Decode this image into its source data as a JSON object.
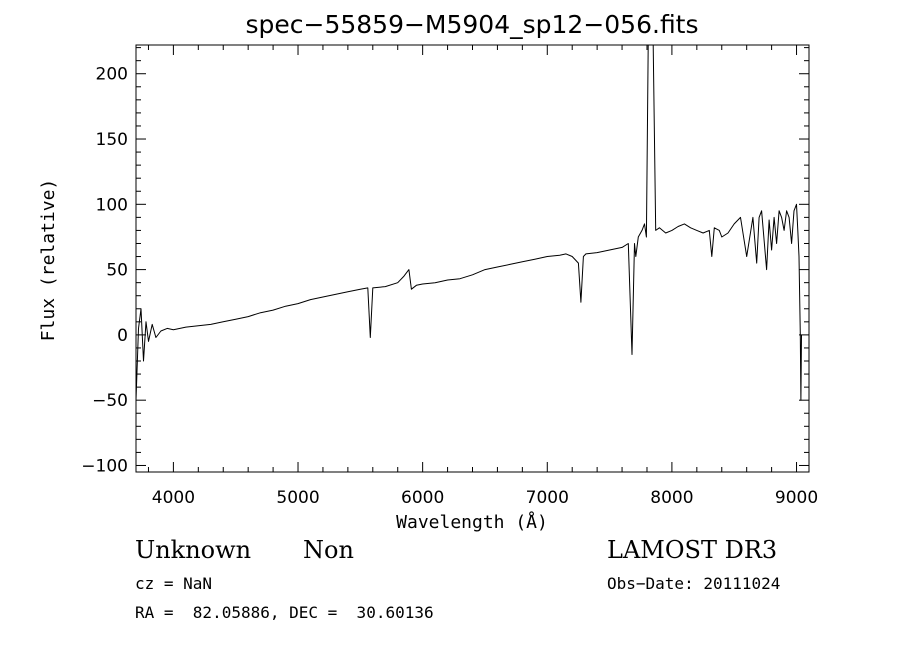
{
  "chart_data": {
    "type": "line",
    "title": "spec−55859−M5904_sp12−056.fits",
    "xlabel": "Wavelength (Å)",
    "ylabel": "Flux (relative)",
    "xlim": [
      3700,
      9100
    ],
    "ylim": [
      -105,
      222
    ],
    "xticks": [
      4000,
      5000,
      6000,
      7000,
      8000,
      9000
    ],
    "xtick_labels": [
      "4000",
      "5000",
      "6000",
      "7000",
      "8000",
      "9000"
    ],
    "yticks": [
      -100,
      -50,
      0,
      50,
      100,
      150,
      200
    ],
    "ytick_labels": [
      "−100",
      "−50",
      "0",
      "50",
      "100",
      "150",
      "200"
    ],
    "grid": false,
    "series": [
      {
        "color": "#000000",
        "x": [
          3700,
          3720,
          3740,
          3760,
          3780,
          3800,
          3830,
          3860,
          3900,
          3950,
          4000,
          4100,
          4200,
          4300,
          4400,
          4500,
          4600,
          4700,
          4800,
          4900,
          5000,
          5100,
          5200,
          5300,
          5400,
          5500,
          5560,
          5580,
          5600,
          5700,
          5800,
          5850,
          5890,
          5910,
          5950,
          6000,
          6100,
          6200,
          6300,
          6400,
          6500,
          6600,
          6700,
          6800,
          6900,
          7000,
          7100,
          7150,
          7200,
          7250,
          7270,
          7290,
          7310,
          7400,
          7500,
          7600,
          7650,
          7680,
          7700,
          7710,
          7730,
          7760,
          7780,
          7795,
          7810,
          7830,
          7850,
          7870,
          7900,
          7950,
          8000,
          8050,
          8100,
          8150,
          8200,
          8250,
          8300,
          8320,
          8340,
          8380,
          8400,
          8450,
          8500,
          8550,
          8600,
          8650,
          8680,
          8700,
          8720,
          8760,
          8780,
          8800,
          8820,
          8840,
          8860,
          8880,
          8900,
          8920,
          8940,
          8960,
          8980,
          9000,
          9010,
          9020,
          9030,
          9035,
          9040
        ],
        "y": [
          -50,
          5,
          20,
          -20,
          10,
          -5,
          8,
          -2,
          3,
          5,
          4,
          6,
          7,
          8,
          10,
          12,
          14,
          17,
          19,
          22,
          24,
          27,
          29,
          31,
          33,
          35,
          36,
          -2,
          36,
          37,
          40,
          45,
          50,
          35,
          38,
          39,
          40,
          42,
          43,
          46,
          50,
          52,
          54,
          56,
          58,
          60,
          61,
          62,
          60,
          55,
          25,
          60,
          62,
          63,
          65,
          67,
          70,
          -15,
          70,
          60,
          75,
          80,
          85,
          75,
          222,
          222,
          222,
          80,
          82,
          78,
          80,
          83,
          85,
          82,
          80,
          78,
          80,
          60,
          82,
          80,
          75,
          78,
          85,
          90,
          60,
          90,
          55,
          90,
          95,
          50,
          88,
          65,
          90,
          70,
          95,
          90,
          80,
          95,
          90,
          70,
          95,
          100,
          80,
          60,
          0,
          -50,
          0
        ]
      }
    ]
  },
  "info": {
    "object_class": "Unknown",
    "subclass": "Non",
    "survey": "LAMOST DR3",
    "cz": "cz = NaN",
    "obs_date": "Obs−Date: 20111024",
    "coords": "RA =  82.05886, DEC =  30.60136"
  }
}
